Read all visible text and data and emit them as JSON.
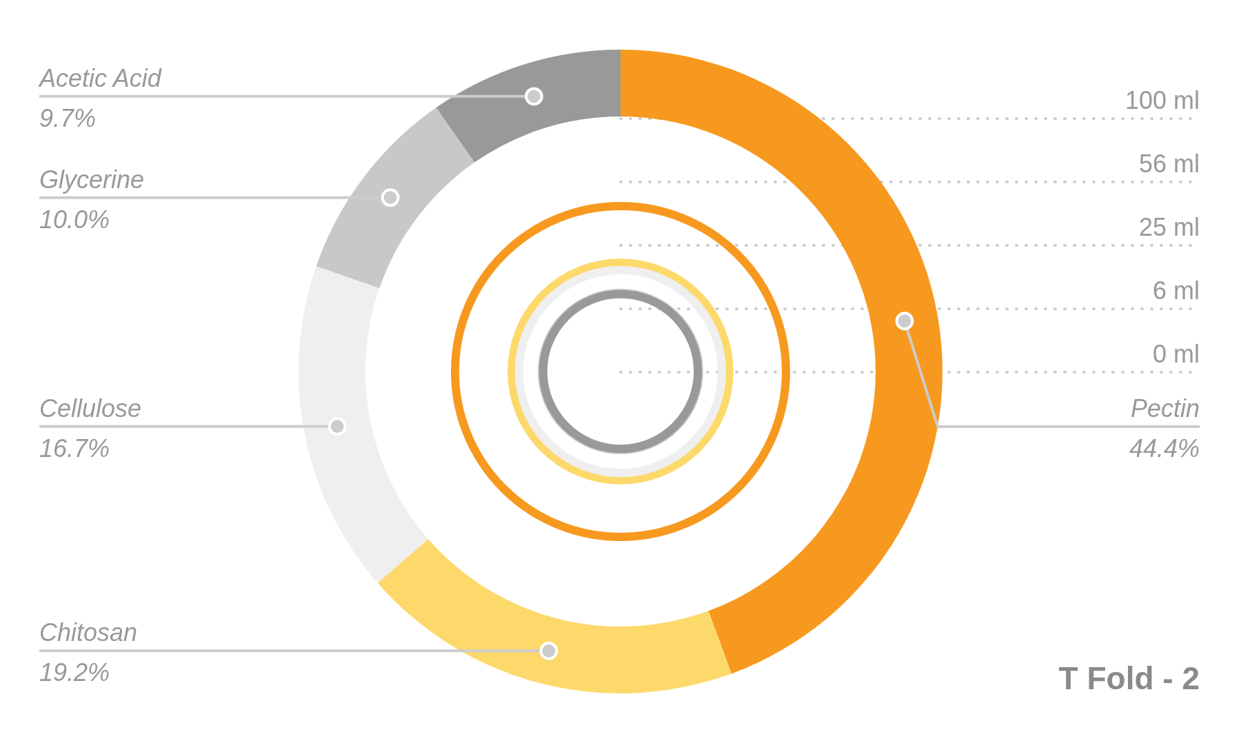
{
  "chart_data": {
    "type": "donut",
    "title": "T Fold - 2",
    "categories": [
      "Pectin",
      "Chitosan",
      "Cellulose",
      "Glycerine",
      "Acetic Acid"
    ],
    "values": [
      44.4,
      19.2,
      16.7,
      10.0,
      9.7
    ],
    "value_labels": [
      "44.4%",
      "19.2%",
      "16.7%",
      "10.0%",
      "9.7%"
    ],
    "colors": [
      "#f7991f",
      "#fdd96b",
      "#efeff0",
      "#c8c8c8",
      "#999999"
    ],
    "annotations": [
      "100 ml",
      "56 ml",
      "25 ml",
      "6 ml",
      "0 ml"
    ]
  }
}
